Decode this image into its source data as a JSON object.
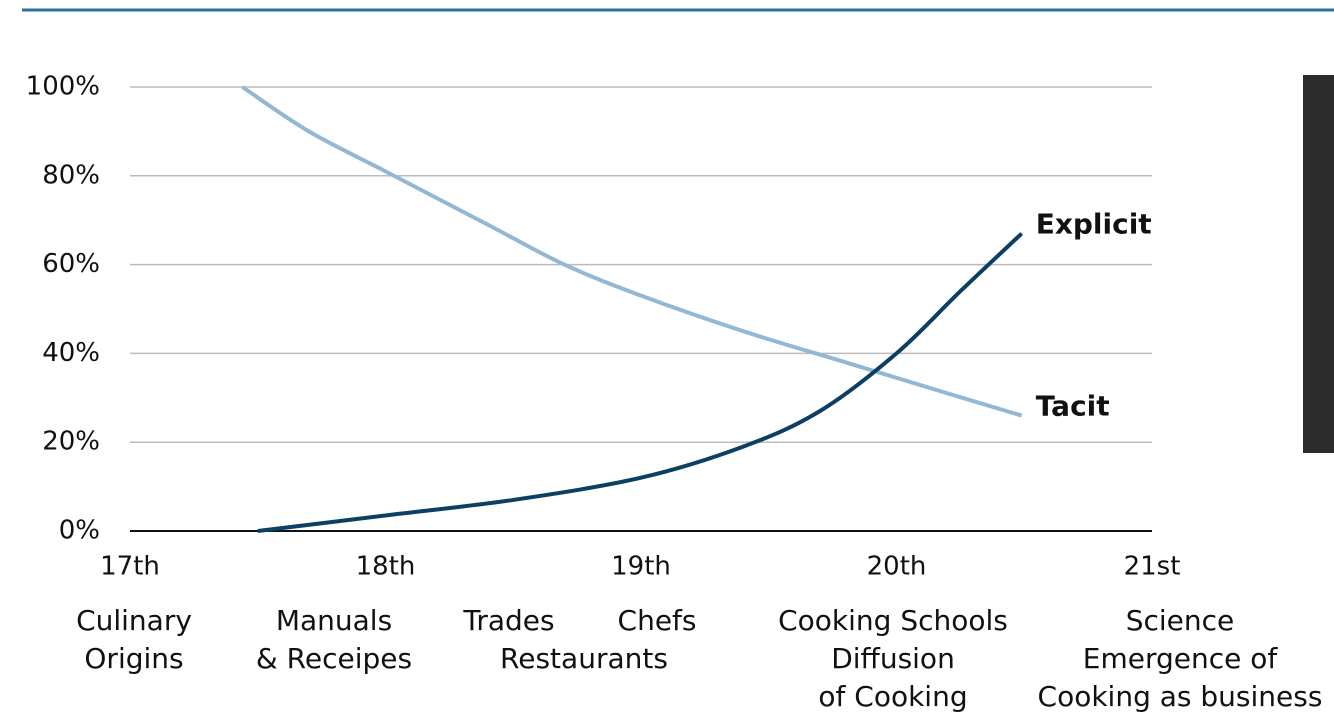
{
  "chart_data": {
    "type": "line",
    "xlim": [
      17,
      21
    ],
    "xticks": [
      {
        "value": 17,
        "label": "17th"
      },
      {
        "value": 18,
        "label": "18th"
      },
      {
        "value": 19,
        "label": "19th"
      },
      {
        "value": 20,
        "label": "20th"
      },
      {
        "value": 21,
        "label": "21st"
      }
    ],
    "ylim": [
      0,
      100
    ],
    "yticks": [
      {
        "value": 0,
        "label": "0%"
      },
      {
        "value": 20,
        "label": "20%"
      },
      {
        "value": 40,
        "label": "40%"
      },
      {
        "value": 60,
        "label": "60%"
      },
      {
        "value": 80,
        "label": "80%"
      },
      {
        "value": 100,
        "label": "100%"
      }
    ],
    "grid": true,
    "series": [
      {
        "name": "Tacit",
        "color": "#93b8d3",
        "x": [
          17.44,
          17.7,
          18,
          18.4,
          18.7,
          19,
          19.4,
          19.8,
          20.2,
          20.49
        ],
        "values": [
          100,
          90,
          81,
          69,
          60,
          53,
          45,
          38,
          31,
          26
        ]
      },
      {
        "name": "Explicit",
        "color": "#0d3f63",
        "x": [
          17.5,
          18,
          18.5,
          19,
          19.4,
          19.7,
          20,
          20.25,
          20.49
        ],
        "values": [
          0,
          3.5,
          7,
          12,
          19,
          27,
          40,
          54,
          67
        ]
      }
    ],
    "annotations": [
      [
        "Culinary",
        "Origins"
      ],
      [
        "Manuals",
        "& Receipes"
      ],
      [
        "Trades"
      ],
      [
        "Chefs"
      ],
      [
        "Restaurants"
      ],
      [
        "Cooking Schools",
        "Diffusion",
        "of Cooking"
      ],
      [
        "Science",
        "Emergence of",
        "Cooking as business"
      ]
    ]
  }
}
